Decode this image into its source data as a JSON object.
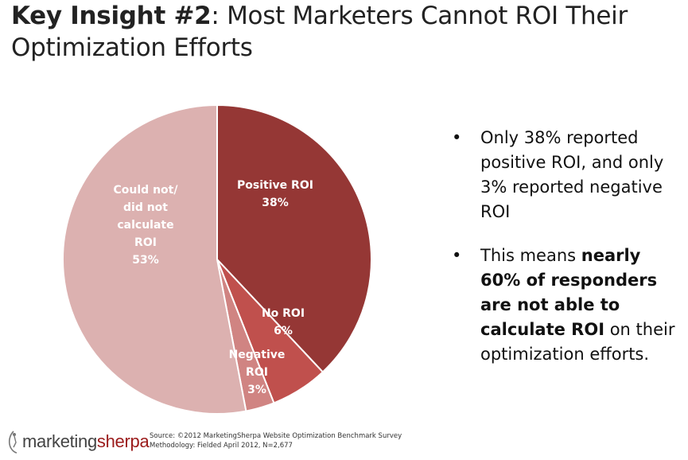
{
  "title": {
    "bold": "Key Insight #2",
    "rest": ": Most Marketers Cannot ROI Their Optimization Efforts"
  },
  "chart_data": {
    "type": "pie",
    "title": "",
    "slices": [
      {
        "name": "positive-roi",
        "label_lines": [
          "Positive ROI",
          "38%"
        ],
        "value": 38,
        "color": "#953735"
      },
      {
        "name": "no-roi",
        "label_lines": [
          "No ROI",
          "6%"
        ],
        "value": 6,
        "color": "#c0504d"
      },
      {
        "name": "negative-roi",
        "label_lines": [
          "Negative",
          "ROI",
          "3%"
        ],
        "value": 3,
        "color": "#d08482"
      },
      {
        "name": "could-not-calculate",
        "label_lines": [
          "Could not/",
          "did not",
          "calculate",
          "ROI",
          "53%"
        ],
        "value": 53,
        "color": "#dcb1b0"
      }
    ],
    "start_angle_deg": 0,
    "direction": "clockwise"
  },
  "bullets": [
    {
      "parts": [
        {
          "text": "Only 38% reported positive ROI, and only 3% reported negative ROI",
          "bold": false
        }
      ]
    },
    {
      "parts": [
        {
          "text": "This means ",
          "bold": false
        },
        {
          "text": "nearly 60% of responders are not able to calculate ROI",
          "bold": true
        },
        {
          "text": " on their optimization efforts.",
          "bold": false
        }
      ]
    }
  ],
  "bullet_glyph": "•",
  "logo": {
    "part1": "marketing",
    "part2": "sherpa",
    "icon": "mountain-climber-icon"
  },
  "source": {
    "line1": "Source: ©2012 MarketingSherpa Website Optimization Benchmark Survey",
    "line2": "Methodology: Fielded April 2012, N=2,677"
  }
}
